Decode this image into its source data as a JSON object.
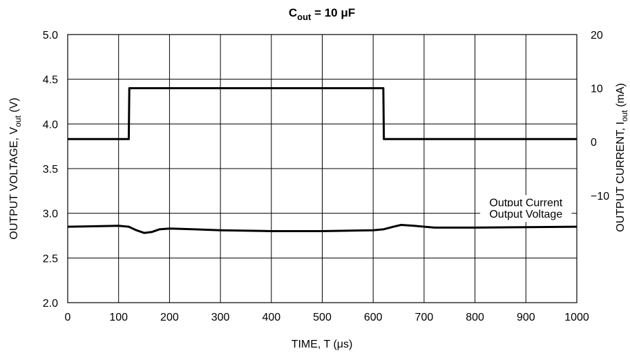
{
  "chart_data": {
    "type": "line",
    "title": "C",
    "title_sub": "out",
    "title_rest": " = 10 μF",
    "x_axis": {
      "label": "TIME, T (",
      "label_unit": "μs",
      "label_end": ")",
      "range": [
        0,
        1000
      ],
      "ticks": [
        0,
        100,
        200,
        300,
        400,
        500,
        600,
        700,
        800,
        900,
        1000
      ]
    },
    "y_left": {
      "label": "OUTPUT VOLTAGE, V",
      "label_sub": "out",
      "label_end": " (V)",
      "range": [
        2.0,
        5.0
      ],
      "ticks": [
        "2.0",
        "2.5",
        "3.0",
        "3.5",
        "4.0",
        "4.5",
        "5.0"
      ]
    },
    "y_right": {
      "label": "OUTPUT CURRENT, I",
      "label_sub": "out",
      "label_end": " (mA)",
      "range": [
        -30,
        20
      ],
      "ticks": [
        {
          "value": 20,
          "label": "20"
        },
        {
          "value": 10,
          "label": "10"
        },
        {
          "value": 0,
          "label": "0"
        },
        {
          "value": -10,
          "label": "−10"
        }
      ]
    },
    "grid": true,
    "series": [
      {
        "name": "Output Current",
        "axis": "right",
        "label_at": [
          900,
          3.08
        ],
        "points": [
          [
            0,
            0.5
          ],
          [
            120,
            0.5
          ],
          [
            121,
            10
          ],
          [
            620,
            10
          ],
          [
            621,
            0.5
          ],
          [
            1000,
            0.5
          ]
        ]
      },
      {
        "name": "Output Voltage",
        "axis": "left",
        "label_at": [
          900,
          2.95
        ],
        "points": [
          [
            0,
            2.85
          ],
          [
            100,
            2.86
          ],
          [
            120,
            2.85
          ],
          [
            135,
            2.81
          ],
          [
            150,
            2.78
          ],
          [
            165,
            2.79
          ],
          [
            180,
            2.82
          ],
          [
            200,
            2.83
          ],
          [
            250,
            2.82
          ],
          [
            300,
            2.81
          ],
          [
            400,
            2.8
          ],
          [
            500,
            2.8
          ],
          [
            600,
            2.81
          ],
          [
            620,
            2.82
          ],
          [
            640,
            2.85
          ],
          [
            655,
            2.87
          ],
          [
            680,
            2.86
          ],
          [
            720,
            2.84
          ],
          [
            800,
            2.84
          ],
          [
            1000,
            2.85
          ]
        ]
      }
    ]
  }
}
